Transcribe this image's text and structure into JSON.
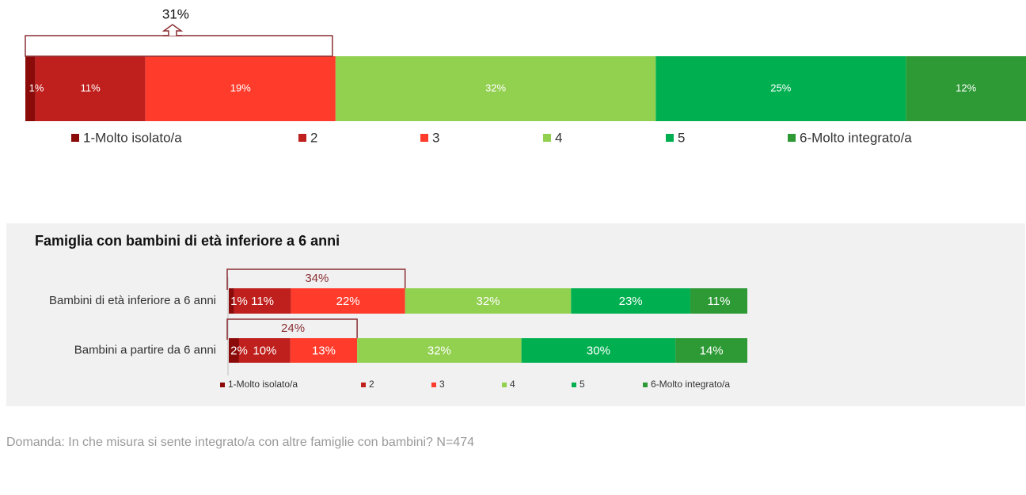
{
  "colors": {
    "c1": "#8b0a0a",
    "c2": "#c0201d",
    "c3": "#ff3b2b",
    "c4": "#92d050",
    "c5": "#00b050",
    "c6": "#2e9a35",
    "bracket": "#8b2f33"
  },
  "panel_title": "Famiglia con bambini di età inferiore a 6 anni",
  "footnote": "Domanda: In che misura si sente integrato/a con altre famiglie con bambini?  N=474",
  "chart_data": [
    {
      "type": "bar",
      "orientation": "horizontal-stacked-100",
      "categories": [
        ""
      ],
      "series": [
        {
          "name": "1-Molto isolato/a",
          "values": [
            1
          ]
        },
        {
          "name": "2",
          "values": [
            11
          ]
        },
        {
          "name": "3",
          "values": [
            19
          ]
        },
        {
          "name": "4",
          "values": [
            32
          ]
        },
        {
          "name": "5",
          "values": [
            25
          ]
        },
        {
          "name": "6-Molto integrato/a",
          "values": [
            12
          ]
        }
      ],
      "data_labels": [
        [
          "1%",
          "11%",
          "19%",
          "32%",
          "25%",
          "12%"
        ]
      ],
      "annotations": [
        {
          "label": "31%",
          "covers_series": [
            "1-Molto isolato/a",
            "2",
            "3"
          ]
        }
      ],
      "legend": "bottom"
    },
    {
      "type": "bar",
      "orientation": "horizontal-stacked-100",
      "categories": [
        "Bambini di età inferiore a 6 anni",
        "Bambini a partire da 6 anni"
      ],
      "series": [
        {
          "name": "1-Molto isolato/a",
          "values": [
            1,
            2
          ]
        },
        {
          "name": "2",
          "values": [
            11,
            10
          ]
        },
        {
          "name": "3",
          "values": [
            22,
            13
          ]
        },
        {
          "name": "4",
          "values": [
            32,
            32
          ]
        },
        {
          "name": "5",
          "values": [
            23,
            30
          ]
        },
        {
          "name": "6-Molto integrato/a",
          "values": [
            11,
            14
          ]
        }
      ],
      "data_labels": [
        [
          "1%",
          "11%",
          "22%",
          "32%",
          "23%",
          "11%"
        ],
        [
          "2%",
          "10%",
          "13%",
          "32%",
          "30%",
          "14%"
        ]
      ],
      "annotations": [
        {
          "label": "34%",
          "row": 0
        },
        {
          "label": "24%",
          "row": 1
        }
      ],
      "legend": "bottom"
    }
  ]
}
